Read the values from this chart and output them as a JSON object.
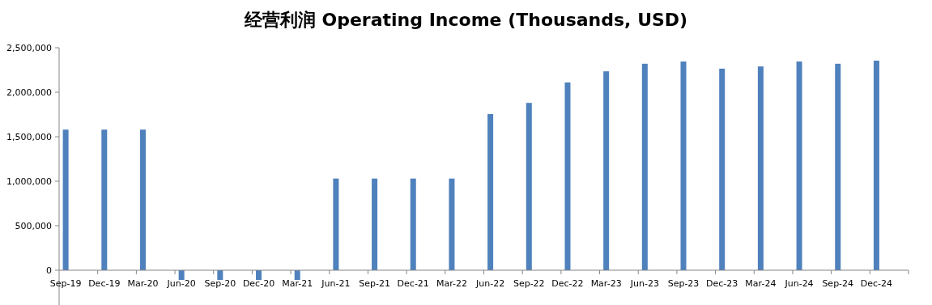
{
  "chart_data": {
    "type": "bar",
    "title": "经营利润 Operating Income (Thousands, USD)",
    "categories": [
      "Sep-19",
      "Dec-19",
      "Mar-20",
      "Jun-20",
      "Sep-20",
      "Dec-20",
      "Mar-21",
      "Jun-21",
      "Sep-21",
      "Dec-21",
      "Mar-22",
      "Jun-22",
      "Sep-22",
      "Dec-22",
      "Mar-23",
      "Jun-23",
      "Sep-23",
      "Dec-23",
      "Mar-24",
      "Jun-24",
      "Sep-24",
      "Dec-24"
    ],
    "values": [
      1580000,
      1580000,
      1580000,
      -110000,
      -110000,
      -110000,
      -110000,
      1030000,
      1030000,
      1030000,
      1030000,
      1755000,
      1880000,
      2110000,
      2235000,
      2320000,
      2345000,
      2265000,
      2290000,
      2345000,
      2320000,
      2355000
    ],
    "color": "#4f81bd",
    "ylim": [
      -400000,
      2500000
    ],
    "yticks": [
      {
        "value": 0,
        "label": "0"
      },
      {
        "value": 500000,
        "label": "500,000"
      },
      {
        "value": 1000000,
        "label": "1,000,000"
      },
      {
        "value": 1500000,
        "label": "1,500,000"
      },
      {
        "value": 2000000,
        "label": "2,000,000"
      },
      {
        "value": 2500000,
        "label": "2,500,000"
      }
    ],
    "grid": false,
    "legend": false
  }
}
